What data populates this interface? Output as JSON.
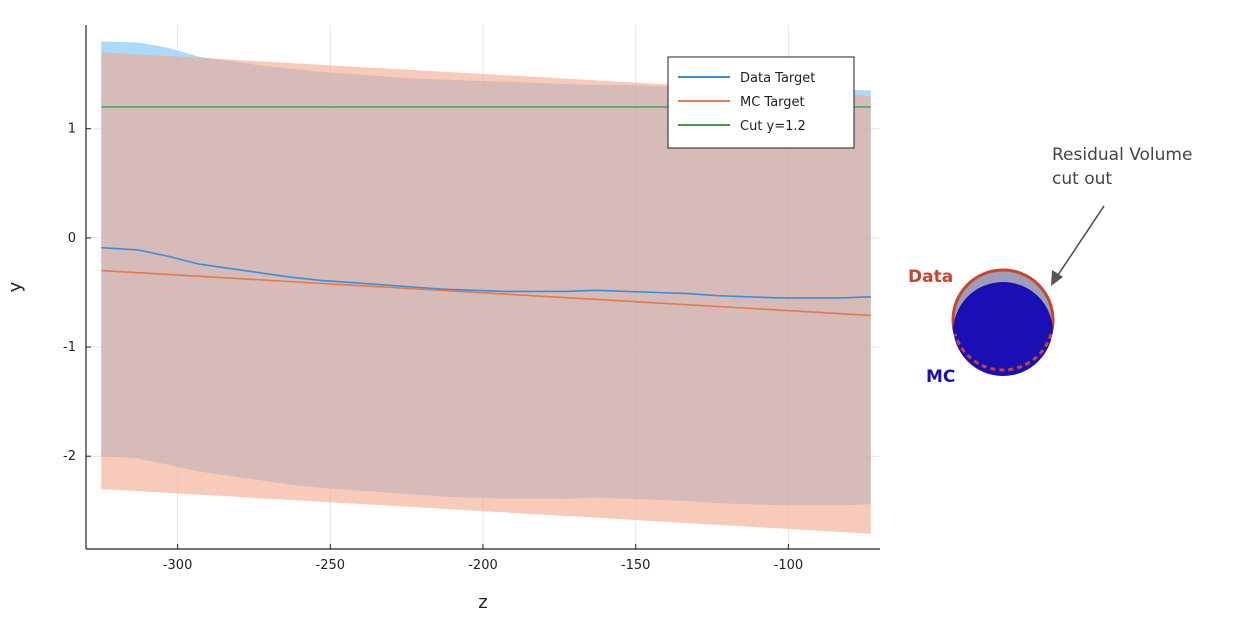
{
  "chart_data": {
    "type": "line",
    "xlabel": "z",
    "ylabel": "y",
    "xlim": [
      -330,
      -70
    ],
    "ylim": [
      -2.85,
      1.95
    ],
    "xticks": [
      -300,
      -250,
      -200,
      -150,
      -100
    ],
    "yticks": [
      -2,
      -1,
      0,
      1
    ],
    "grid": true,
    "legend_position": "top-right",
    "series": [
      {
        "name": "Data Target",
        "color": "#3a8fd6",
        "band_color": "#66bbf5",
        "x": [
          -325,
          -313,
          -303,
          -293,
          -283,
          -273,
          -263,
          -253,
          -243,
          -233,
          -223,
          -213,
          -203,
          -193,
          -183,
          -173,
          -163,
          -153,
          -143,
          -133,
          -123,
          -113,
          -103,
          -93,
          -83,
          -73
        ],
        "y": [
          -0.09,
          -0.11,
          -0.17,
          -0.24,
          -0.28,
          -0.32,
          -0.36,
          -0.39,
          -0.41,
          -0.43,
          -0.45,
          -0.47,
          -0.48,
          -0.49,
          -0.49,
          -0.49,
          -0.48,
          -0.49,
          -0.5,
          -0.51,
          -0.53,
          -0.54,
          -0.55,
          -0.55,
          -0.55,
          -0.54
        ],
        "upper": [
          1.8,
          1.79,
          1.74,
          1.66,
          1.62,
          1.58,
          1.55,
          1.52,
          1.5,
          1.48,
          1.46,
          1.45,
          1.44,
          1.43,
          1.42,
          1.41,
          1.4,
          1.4,
          1.39,
          1.38,
          1.38,
          1.38,
          1.38,
          1.37,
          1.36,
          1.35
        ],
        "lower": [
          -2.0,
          -2.02,
          -2.08,
          -2.14,
          -2.18,
          -2.22,
          -2.26,
          -2.29,
          -2.31,
          -2.33,
          -2.35,
          -2.37,
          -2.38,
          -2.39,
          -2.39,
          -2.39,
          -2.38,
          -2.39,
          -2.4,
          -2.41,
          -2.43,
          -2.44,
          -2.45,
          -2.45,
          -2.45,
          -2.44
        ]
      },
      {
        "name": "MC Target",
        "color": "#e07a4f",
        "band_color": "#f4a68c",
        "x": [
          -325,
          -73
        ],
        "y": [
          -0.3,
          -0.71
        ],
        "upper": [
          1.7,
          1.3
        ],
        "lower": [
          -2.3,
          -2.71
        ]
      },
      {
        "name": "Cut y=1.2",
        "color": "#3aa14a",
        "x": [
          -325,
          -73
        ],
        "y": [
          1.2,
          1.2
        ]
      }
    ]
  },
  "diagram": {
    "data_label": "Data",
    "mc_label": "MC",
    "annotation_line1": "Residual Volume",
    "annotation_line2": "cut out",
    "data_color": "#c8452a",
    "mc_color": "#1a0fb4",
    "residual_color": "#9e9eb8"
  }
}
